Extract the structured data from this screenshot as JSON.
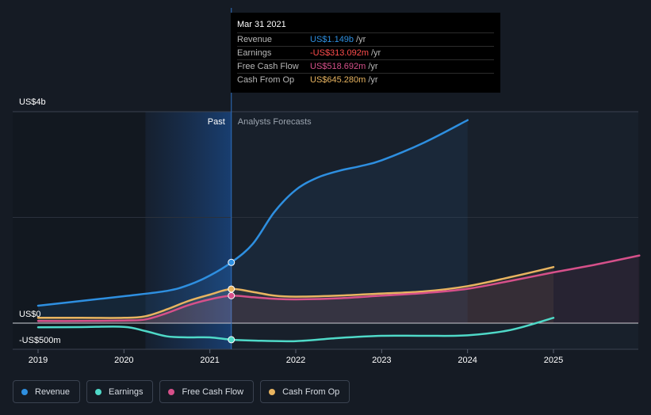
{
  "tooltip": {
    "date": "Mar 31 2021",
    "rows": [
      {
        "name": "Revenue",
        "value": "US$1.149b",
        "unit": "/yr",
        "color": "#2e8fe0"
      },
      {
        "name": "Earnings",
        "value": "-US$313.092m",
        "unit": "/yr",
        "color": "#ff4d4d"
      },
      {
        "name": "Free Cash Flow",
        "value": "US$518.692m",
        "unit": "/yr",
        "color": "#d6508a"
      },
      {
        "name": "Cash From Op",
        "value": "US$645.280m",
        "unit": "/yr",
        "color": "#e8b460"
      }
    ]
  },
  "legend": [
    {
      "label": "Revenue",
      "color": "#2e8fe0"
    },
    {
      "label": "Earnings",
      "color": "#4fd9c8"
    },
    {
      "label": "Free Cash Flow",
      "color": "#d6508a"
    },
    {
      "label": "Cash From Op",
      "color": "#e8b460"
    }
  ],
  "chart_data": {
    "type": "line",
    "y_labels": [
      "US$4b",
      "US$0",
      "-US$500m"
    ],
    "ylim": [
      -500,
      4000
    ],
    "y_unit": "US$ m",
    "past_label": "Past",
    "forecast_label": "Analysts Forecasts",
    "divider_x": 2021.25,
    "x_ticks": [
      2019,
      2020,
      2021,
      2022,
      2023,
      2024,
      2025
    ],
    "xlim": [
      2018.7,
      2026.0
    ],
    "series": [
      {
        "name": "Revenue",
        "color": "#2e8fe0",
        "forecast_end": 2024.0,
        "points": [
          [
            2019.0,
            330
          ],
          [
            2019.5,
            420
          ],
          [
            2020.0,
            510
          ],
          [
            2020.5,
            610
          ],
          [
            2020.75,
            720
          ],
          [
            2021.0,
            900
          ],
          [
            2021.25,
            1149
          ],
          [
            2021.5,
            1500
          ],
          [
            2021.75,
            2100
          ],
          [
            2022.0,
            2520
          ],
          [
            2022.25,
            2750
          ],
          [
            2022.5,
            2880
          ],
          [
            2022.75,
            2970
          ],
          [
            2023.0,
            3080
          ],
          [
            2023.5,
            3420
          ],
          [
            2024.0,
            3840
          ]
        ]
      },
      {
        "name": "Cash From Op",
        "color": "#e8b460",
        "forecast_end": 2025.0,
        "points": [
          [
            2019.0,
            100
          ],
          [
            2019.5,
            100
          ],
          [
            2020.0,
            100
          ],
          [
            2020.25,
            130
          ],
          [
            2020.5,
            260
          ],
          [
            2020.75,
            420
          ],
          [
            2021.0,
            540
          ],
          [
            2021.25,
            645
          ],
          [
            2021.5,
            590
          ],
          [
            2021.75,
            520
          ],
          [
            2022.0,
            500
          ],
          [
            2022.5,
            520
          ],
          [
            2023.0,
            560
          ],
          [
            2023.5,
            600
          ],
          [
            2024.0,
            700
          ],
          [
            2024.5,
            870
          ],
          [
            2025.0,
            1060
          ]
        ]
      },
      {
        "name": "Free Cash Flow",
        "color": "#d6508a",
        "forecast_end": 2026.0,
        "points": [
          [
            2019.0,
            40
          ],
          [
            2019.5,
            40
          ],
          [
            2020.0,
            50
          ],
          [
            2020.25,
            70
          ],
          [
            2020.5,
            190
          ],
          [
            2020.75,
            340
          ],
          [
            2021.0,
            450
          ],
          [
            2021.25,
            519
          ],
          [
            2021.5,
            490
          ],
          [
            2021.75,
            460
          ],
          [
            2022.0,
            450
          ],
          [
            2022.5,
            470
          ],
          [
            2023.0,
            520
          ],
          [
            2023.5,
            570
          ],
          [
            2024.0,
            650
          ],
          [
            2024.5,
            800
          ],
          [
            2025.0,
            960
          ],
          [
            2025.5,
            1110
          ],
          [
            2026.0,
            1280
          ]
        ]
      },
      {
        "name": "Earnings",
        "color": "#4fd9c8",
        "forecast_end": 2025.0,
        "points": [
          [
            2019.0,
            -80
          ],
          [
            2019.5,
            -75
          ],
          [
            2020.0,
            -70
          ],
          [
            2020.25,
            -150
          ],
          [
            2020.5,
            -250
          ],
          [
            2020.75,
            -270
          ],
          [
            2021.0,
            -270
          ],
          [
            2021.25,
            -313
          ],
          [
            2021.5,
            -330
          ],
          [
            2022.0,
            -340
          ],
          [
            2022.5,
            -280
          ],
          [
            2023.0,
            -240
          ],
          [
            2023.5,
            -240
          ],
          [
            2024.0,
            -230
          ],
          [
            2024.5,
            -130
          ],
          [
            2025.0,
            100
          ]
        ]
      }
    ],
    "highlight_x": 2021.25
  }
}
